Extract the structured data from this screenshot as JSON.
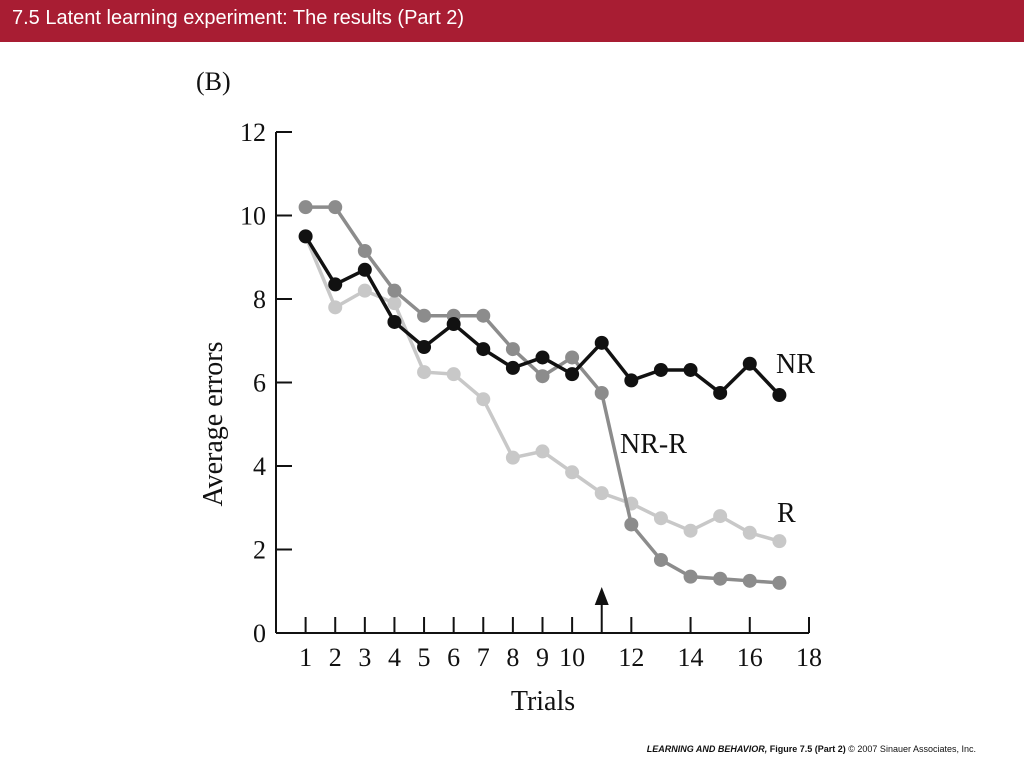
{
  "header": {
    "title": "7.5  Latent learning experiment: The results (Part 2)"
  },
  "footer": {
    "book": "LEARNING AND BEHAVIOR,",
    "figure": "Figure 7.5 (Part 2)",
    "copyright": "© 2007 Sinauer Associates, Inc."
  },
  "colors": {
    "title_bar": "#a81d33",
    "NR": "#111111",
    "NR-R": "#8c8c8c",
    "R": "#c8c8c8"
  },
  "chart_data": {
    "type": "line",
    "panel_label": "(B)",
    "xlabel": "Trials",
    "ylabel": "Average errors",
    "xlim": [
      0,
      18
    ],
    "ylim": [
      0,
      12
    ],
    "xticks": [
      1,
      2,
      3,
      4,
      5,
      6,
      7,
      8,
      9,
      10,
      12,
      14,
      16,
      18
    ],
    "yticks": [
      0,
      2,
      4,
      6,
      8,
      10,
      12
    ],
    "grid": false,
    "annotation": {
      "type": "arrow",
      "x": 11
    },
    "series": [
      {
        "name": "R",
        "x": [
          1,
          2,
          3,
          4,
          5,
          6,
          7,
          8,
          9,
          10,
          11,
          12,
          13,
          14,
          15,
          16,
          17
        ],
        "values": [
          9.5,
          7.8,
          8.2,
          7.9,
          6.25,
          6.2,
          5.6,
          4.2,
          4.35,
          3.85,
          3.35,
          3.1,
          2.75,
          2.45,
          2.8,
          2.4,
          2.2
        ]
      },
      {
        "name": "NR-R",
        "x": [
          1,
          2,
          3,
          4,
          5,
          6,
          7,
          8,
          9,
          10,
          11,
          12,
          13,
          14,
          15,
          16,
          17
        ],
        "values": [
          10.2,
          10.2,
          9.15,
          8.2,
          7.6,
          7.6,
          7.6,
          6.8,
          6.15,
          6.6,
          5.75,
          2.6,
          1.75,
          1.35,
          1.3,
          1.25,
          1.2
        ]
      },
      {
        "name": "NR",
        "x": [
          1,
          2,
          3,
          4,
          5,
          6,
          7,
          8,
          9,
          10,
          11,
          12,
          13,
          14,
          15,
          16,
          17
        ],
        "values": [
          9.5,
          8.35,
          8.7,
          7.45,
          6.85,
          7.4,
          6.8,
          6.35,
          6.6,
          6.2,
          6.95,
          6.05,
          6.3,
          6.3,
          5.75,
          6.45,
          5.7
        ]
      }
    ]
  }
}
